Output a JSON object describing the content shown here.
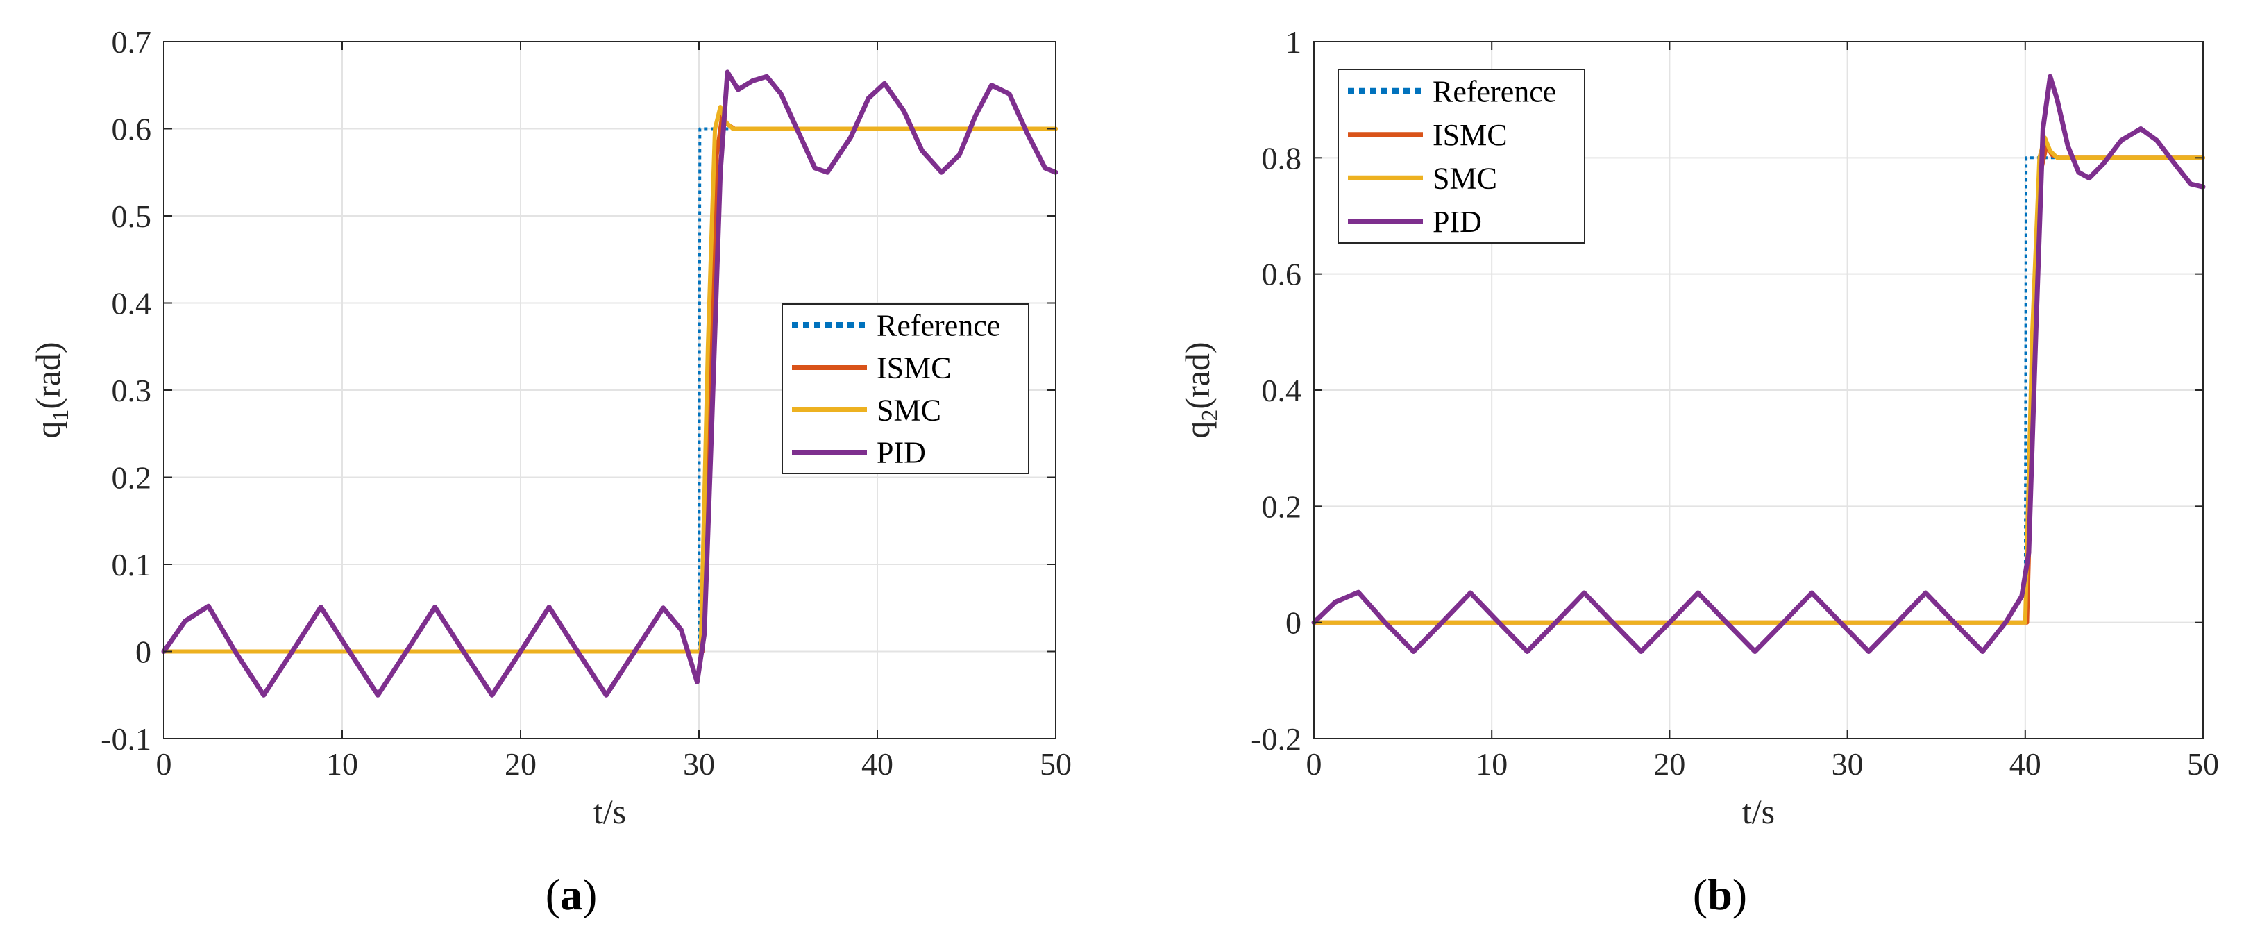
{
  "chart_data": [
    {
      "type": "line",
      "panel_label": "a",
      "xlabel": "t/s",
      "ylabel": {
        "base": "q",
        "sub": "1",
        "suffix": "(rad)"
      },
      "xlim": [
        0,
        50
      ],
      "ylim": [
        -0.1,
        0.7
      ],
      "xticks": [
        0,
        10,
        20,
        30,
        40,
        50
      ],
      "xtick_labels": [
        "0",
        "10",
        "20",
        "30",
        "40",
        "50"
      ],
      "yticks": [
        -0.1,
        0,
        0.1,
        0.2,
        0.3,
        0.4,
        0.5,
        0.6,
        0.7
      ],
      "ytick_labels": [
        "-0.1",
        "0",
        "0.1",
        "0.2",
        "0.3",
        "0.4",
        "0.5",
        "0.6",
        "0.7"
      ],
      "grid": true,
      "legend_position": "center-right",
      "series": [
        {
          "name": "Reference",
          "color": "#0072BD",
          "style": "dotted",
          "x": [
            0,
            30.0,
            30.05,
            50
          ],
          "y": [
            0,
            0,
            0.6,
            0.6
          ]
        },
        {
          "name": "ISMC",
          "color": "#D95319",
          "style": "solid",
          "x": [
            0,
            30.2,
            30.6,
            31.0,
            31.3,
            31.6,
            32.0,
            33.0,
            50
          ],
          "y": [
            0,
            0,
            0.3,
            0.57,
            0.615,
            0.605,
            0.6,
            0.6,
            0.6
          ]
        },
        {
          "name": "SMC",
          "color": "#EDB120",
          "style": "solid",
          "x": [
            0,
            30.1,
            30.5,
            30.9,
            31.2,
            31.5,
            31.9,
            32.5,
            50
          ],
          "y": [
            0,
            0,
            0.35,
            0.6,
            0.625,
            0.608,
            0.6,
            0.6,
            0.6
          ]
        },
        {
          "name": "PID",
          "color": "#7E2F8E",
          "style": "solid",
          "x": [
            0,
            1.2,
            2.5,
            4.0,
            5.6,
            7.2,
            8.8,
            10.4,
            12.0,
            13.6,
            15.2,
            16.8,
            18.4,
            20.0,
            21.6,
            23.2,
            24.8,
            26.4,
            28.0,
            29.0,
            29.9,
            30.3,
            30.7,
            31.2,
            31.6,
            32.2,
            33.0,
            33.8,
            34.6,
            35.6,
            36.5,
            37.2,
            38.5,
            39.5,
            40.4,
            41.5,
            42.5,
            43.6,
            44.6,
            45.5,
            46.4,
            47.4,
            48.4,
            49.4,
            50.0
          ],
          "y": [
            0,
            0.035,
            0.052,
            0.0,
            -0.05,
            0.0,
            0.051,
            0.0,
            -0.05,
            0.0,
            0.051,
            0.0,
            -0.05,
            0.0,
            0.051,
            0.0,
            -0.05,
            0.0,
            0.05,
            0.025,
            -0.035,
            0.02,
            0.25,
            0.55,
            0.665,
            0.645,
            0.655,
            0.66,
            0.64,
            0.595,
            0.555,
            0.55,
            0.59,
            0.635,
            0.652,
            0.62,
            0.575,
            0.55,
            0.57,
            0.615,
            0.65,
            0.64,
            0.595,
            0.555,
            0.55
          ]
        }
      ]
    },
    {
      "type": "line",
      "panel_label": "b",
      "xlabel": "t/s",
      "ylabel": {
        "base": "q",
        "sub": "2",
        "suffix": "(rad)"
      },
      "xlim": [
        0,
        50
      ],
      "ylim": [
        -0.2,
        1
      ],
      "xticks": [
        0,
        10,
        20,
        30,
        40,
        50
      ],
      "xtick_labels": [
        "0",
        "10",
        "20",
        "30",
        "40",
        "50"
      ],
      "yticks": [
        -0.2,
        0,
        0.2,
        0.4,
        0.6,
        0.8,
        1
      ],
      "ytick_labels": [
        "-0.2",
        "0",
        "0.2",
        "0.4",
        "0.6",
        "0.8",
        "1"
      ],
      "grid": true,
      "legend_position": "top-left",
      "series": [
        {
          "name": "Reference",
          "color": "#0072BD",
          "style": "dotted",
          "x": [
            0,
            40.0,
            40.05,
            50
          ],
          "y": [
            0,
            0,
            0.8,
            0.8
          ]
        },
        {
          "name": "ISMC",
          "color": "#D95319",
          "style": "solid",
          "x": [
            0,
            40.1,
            40.5,
            40.9,
            41.2,
            41.5,
            41.9,
            42.5,
            50
          ],
          "y": [
            0,
            0,
            0.45,
            0.78,
            0.82,
            0.805,
            0.8,
            0.8,
            0.8
          ]
        },
        {
          "name": "SMC",
          "color": "#EDB120",
          "style": "solid",
          "x": [
            0,
            40.0,
            40.4,
            40.8,
            41.1,
            41.4,
            41.8,
            42.4,
            50
          ],
          "y": [
            0,
            0,
            0.5,
            0.8,
            0.835,
            0.812,
            0.8,
            0.8,
            0.8
          ]
        },
        {
          "name": "PID",
          "color": "#7E2F8E",
          "style": "solid",
          "x": [
            0,
            1.2,
            2.5,
            4.0,
            5.6,
            7.2,
            8.8,
            10.4,
            12.0,
            13.6,
            15.2,
            16.8,
            18.4,
            20.0,
            21.6,
            23.2,
            24.8,
            26.4,
            28.0,
            29.6,
            31.2,
            32.8,
            34.4,
            36.0,
            37.6,
            38.9,
            39.8,
            40.2,
            40.6,
            41.0,
            41.4,
            41.8,
            42.4,
            43.0,
            43.6,
            44.4,
            45.4,
            46.5,
            47.4,
            48.4,
            49.3,
            50.0
          ],
          "y": [
            0,
            0.035,
            0.052,
            0.0,
            -0.05,
            0.0,
            0.051,
            0.0,
            -0.05,
            0.0,
            0.051,
            0.0,
            -0.05,
            0.0,
            0.051,
            0.0,
            -0.05,
            0.0,
            0.051,
            0.0,
            -0.05,
            0.0,
            0.051,
            0.0,
            -0.05,
            0.0,
            0.045,
            0.12,
            0.5,
            0.85,
            0.94,
            0.9,
            0.82,
            0.775,
            0.765,
            0.79,
            0.83,
            0.85,
            0.83,
            0.79,
            0.755,
            0.75
          ]
        }
      ]
    }
  ]
}
